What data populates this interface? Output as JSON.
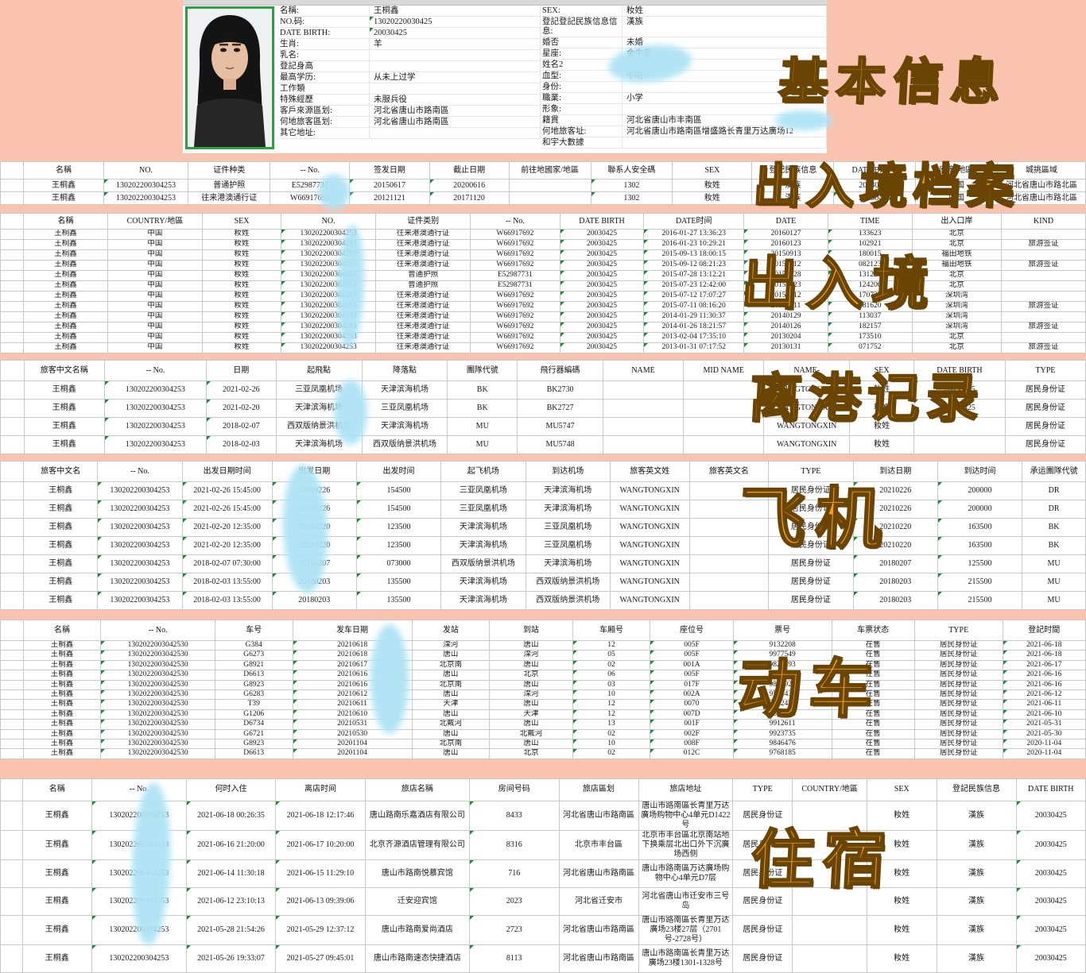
{
  "stamps": {
    "basic": "基本信息",
    "entry_exit_archive": "出入境档案",
    "entry_exit": "出入境",
    "departure": "离港记录",
    "flight": "飞机",
    "train": "动车",
    "lodging": "住宿"
  },
  "profile": {
    "left_fields": [
      {
        "label": "名稱:",
        "value": "王桐鑫"
      },
      {
        "label": "NO.码:",
        "value": "13020220030425"
      },
      {
        "label": "DATE BIRTH:",
        "value": "20030425"
      },
      {
        "label": "生肖:",
        "value": "羊"
      },
      {
        "label": "乳名:",
        "value": ""
      },
      {
        "label": "登記身高",
        "value": ""
      },
      {
        "label": "最高学历:",
        "value": "从未上过学"
      },
      {
        "label": "工作類",
        "value": ""
      },
      {
        "label": "特殊經歷",
        "value": "未服兵役"
      },
      {
        "label": "客戶來源區划:",
        "value": "河北省唐山市路南區"
      },
      {
        "label": "何地旅客區划:",
        "value": "河北省唐山市路南區"
      },
      {
        "label": "其它地址:",
        "value": ""
      }
    ],
    "right_fields": [
      {
        "label": "SEX:",
        "value": "籹姓"
      },
      {
        "label": "登記登記民族信息信息:",
        "value": "漢族"
      },
      {
        "label": "婚否",
        "value": "未婚"
      },
      {
        "label": "星座:",
        "value": "金牛座"
      },
      {
        "label": "姓名2",
        "value": ""
      },
      {
        "label": "血型:",
        "value": "不明"
      },
      {
        "label": "身份:",
        "value": ""
      },
      {
        "label": "職業:",
        "value": "小学"
      },
      {
        "label": "形象:",
        "value": ""
      },
      {
        "label": "籍貫",
        "value": "河北省唐山市丰南區"
      },
      {
        "label": "何地旅客址:",
        "value": "河北省唐山市路南區增盛路长青里万达廣场12"
      },
      {
        "label": "和宇大數據",
        "value": ""
      }
    ]
  },
  "tables": [
    {
      "name": "entry-exit-archive-table",
      "headers": [
        "名稱",
        "NO.",
        "证件种类",
        "-- No.",
        "签发日期",
        "截止日期",
        "前往地國家/地區",
        "聯系人安全碼",
        "SEX",
        "登記民族信息",
        "DATE BIRTH",
        "國家/地區",
        "城挑區域"
      ],
      "rows": [
        [
          "王桐鑫",
          "130202200304253",
          "普通护照",
          "E52987731",
          "20150617",
          "20200616",
          "",
          "1302",
          "籹姓",
          "漢族",
          "20030425",
          "中国",
          "河北省唐山市路北區"
        ],
        [
          "王桐鑫",
          "130202200304253",
          "往来港澳通行证",
          "W66917692",
          "20121121",
          "20171120",
          "",
          "1302",
          "籹姓",
          "漢族",
          "20030425",
          "中国",
          "河北省唐山市路北區"
        ]
      ]
    },
    {
      "name": "entry-exit-table",
      "headers": [
        "名稱",
        "COUNTRY/地區",
        "SEX",
        "NO.",
        "证件类别",
        "-- No.",
        "DATE BIRTH",
        "DATE时间",
        "DATE",
        "TIME",
        "出入口岸",
        "KIND"
      ],
      "rows": [
        [
          "王桐鑫",
          "中国",
          "籹姓",
          "130202200304253",
          "往来港澳通行证",
          "W66917692",
          "20030425",
          "2016-01-27 13:36:23",
          "20160127",
          "133623",
          "北京",
          ""
        ],
        [
          "王桐鑫",
          "中国",
          "籹姓",
          "130202200304253",
          "往来港澳通行证",
          "W66917692",
          "20030425",
          "2016-01-23 10:29:21",
          "20160123",
          "102921",
          "北京",
          "旅游签证"
        ],
        [
          "王桐鑫",
          "中国",
          "籹姓",
          "130202200304253",
          "往来港澳通行证",
          "W66917692",
          "20030425",
          "2015-09-13 18:00:15",
          "20150913",
          "180015",
          "福田地铁",
          ""
        ],
        [
          "王桐鑫",
          "中国",
          "籹姓",
          "130202200304253",
          "往来港澳通行证",
          "W66917692",
          "20030425",
          "2015-09-12 08:21:23",
          "20150912",
          "082123",
          "福田地铁",
          "旅游签证"
        ],
        [
          "王桐鑫",
          "中国",
          "籹姓",
          "130202200304253",
          "普通护照",
          "E52987731",
          "20030425",
          "2015-07-28 13:12:21",
          "20150728",
          "131221",
          "北京",
          ""
        ],
        [
          "王桐鑫",
          "中国",
          "籹姓",
          "130202200304253",
          "普通护照",
          "E52987731",
          "20030425",
          "2015-07-23 12:42:00",
          "20150723",
          "124200",
          "北京",
          ""
        ],
        [
          "王桐鑫",
          "中国",
          "籹姓",
          "130202200304253",
          "往来港澳通行证",
          "W66917692",
          "20030425",
          "2015-07-12 17:07:27",
          "20150712",
          "170727",
          "深圳湾",
          ""
        ],
        [
          "王桐鑫",
          "中国",
          "籹姓",
          "130202200304253",
          "往来港澳通行证",
          "W66917692",
          "20030425",
          "2015-07-11 08:16:20",
          "20150711",
          "081620",
          "深圳湾",
          "旅游签证"
        ],
        [
          "王桐鑫",
          "中国",
          "籹姓",
          "130202200304253",
          "往来港澳通行证",
          "W66917692",
          "20030425",
          "2014-01-29 11:30:37",
          "20140129",
          "113037",
          "深圳湾",
          ""
        ],
        [
          "王桐鑫",
          "中国",
          "籹姓",
          "130202200304253",
          "往来港澳通行证",
          "W66917692",
          "20030425",
          "2014-01-26 18:21:57",
          "20140126",
          "182157",
          "深圳湾",
          "旅游签证"
        ],
        [
          "王桐鑫",
          "中国",
          "籹姓",
          "130202200304253",
          "往来港澳通行证",
          "W66917692",
          "20030425",
          "2013-02-04 17:35:10",
          "20130204",
          "173510",
          "北京",
          ""
        ],
        [
          "王桐鑫",
          "中国",
          "籹姓",
          "130202200304253",
          "往来港澳通行证",
          "W66917692",
          "20030425",
          "2013-01-31 07:17:52",
          "20130131",
          "071752",
          "北京",
          "旅游签证"
        ]
      ]
    },
    {
      "name": "departure-records-table",
      "headers": [
        "旅客中文名稱",
        "-- No.",
        "日期",
        "起飛點",
        "降落點",
        "團隊代號",
        "飛行器編碼",
        "NAME",
        "MID NAME",
        "NAME-",
        "SEX",
        "DATE BIRTH",
        "TYPE"
      ],
      "rows": [
        [
          "王桐鑫",
          "130202200304253",
          "2021-02-26",
          "三亚凤凰机场",
          "天津滨海机场",
          "BK",
          "BK2730",
          "",
          "",
          "WANGTONGXIN",
          "籹姓",
          "20030425",
          "居民身份证"
        ],
        [
          "王桐鑫",
          "130202200304253",
          "2021-02-20",
          "天津滨海机场",
          "三亚凤凰机场",
          "BK",
          "BK2727",
          "",
          "",
          "WANGTONGXIN",
          "籹姓",
          "20030425",
          "居民身份证"
        ],
        [
          "王桐鑫",
          "130202200304253",
          "2018-02-07",
          "西双版纳景洪机场",
          "天津滨海机场",
          "MU",
          "MU5747",
          "",
          "",
          "WANGTONGXIN",
          "籹姓",
          "",
          "居民身份证"
        ],
        [
          "王桐鑫",
          "130202200304253",
          "2018-02-03",
          "天津滨海机场",
          "西双版纳景洪机场",
          "MU",
          "MU5748",
          "",
          "",
          "WANGTONGXIN",
          "籹姓",
          "",
          "居民身份证"
        ]
      ]
    },
    {
      "name": "flight-records-table",
      "headers": [
        "旅客中文名",
        "-- No.",
        "出发日期时间",
        "出发日期",
        "出发时间",
        "起飞机场",
        "到达机场",
        "旅客英文姓",
        "旅客英文名",
        "TYPE",
        "到达日期",
        "到达时间",
        "承运團隊代號"
      ],
      "rows": [
        [
          "王桐鑫",
          "130202200304253",
          "2021-02-26 15:45:00",
          "20210226",
          "154500",
          "三亚凤凰机场",
          "天津滨海机场",
          "WANGTONGXIN",
          "",
          "居民身份证",
          "20210226",
          "200000",
          "DR"
        ],
        [
          "王桐鑫",
          "130202200304253",
          "2021-02-26 15:45:00",
          "20210226",
          "154500",
          "三亚凤凰机场",
          "天津滨海机场",
          "WANGTONGXIN",
          "",
          "居民身份证",
          "20210226",
          "200000",
          "DR"
        ],
        [
          "王桐鑫",
          "130202200304253",
          "2021-02-20 12:35:00",
          "20210220",
          "123500",
          "天津滨海机场",
          "三亚凤凰机场",
          "WANGTONGXIN",
          "",
          "居民身份证",
          "20210220",
          "163500",
          "BK"
        ],
        [
          "王桐鑫",
          "130202200304253",
          "2021-02-20 12:35:00",
          "20210220",
          "123500",
          "天津滨海机场",
          "三亚凤凰机场",
          "WANGTONGXIN",
          "",
          "居民身份证",
          "20210220",
          "163500",
          "BK"
        ],
        [
          "王桐鑫",
          "130202200304253",
          "2018-02-07 07:30:00",
          "20180207",
          "073000",
          "西双版纳景洪机场",
          "天津滨海机场",
          "WANGTONGXIN",
          "",
          "居民身份证",
          "20180207",
          "125500",
          "MU"
        ],
        [
          "王桐鑫",
          "130202200304253",
          "2018-02-03 13:55:00",
          "20180203",
          "135500",
          "天津滨海机场",
          "西双版纳景洪机场",
          "WANGTONGXIN",
          "",
          "居民身份证",
          "20180203",
          "215500",
          "MU"
        ],
        [
          "王桐鑫",
          "130202200304253",
          "2018-02-03 13:55:00",
          "20180203",
          "135500",
          "天津滨海机场",
          "西双版纳景洪机场",
          "WANGTONGXIN",
          "",
          "居民身份证",
          "20180203",
          "215500",
          "MU"
        ]
      ]
    },
    {
      "name": "train-records-table",
      "headers": [
        "名稱",
        "-- No.",
        "车号",
        "发车日期",
        "发站",
        "到站",
        "车厢号",
        "座位号",
        "票号",
        "车票状态",
        "TYPE",
        "登記时間"
      ],
      "rows": [
        [
          "王桐鑫",
          "1302022003042530",
          "G384",
          "20210618",
          "滦河",
          "唐山",
          "12",
          "005F",
          "9132208",
          "在售",
          "居民身份证",
          "2021-06-18"
        ],
        [
          "王桐鑫",
          "1302022003042530",
          "G6273",
          "20210618",
          "唐山",
          "滦河",
          "05",
          "005F",
          "9977549",
          "在售",
          "居民身份证",
          "2021-06-18"
        ],
        [
          "王桐鑫",
          "1302022003042530",
          "G8921",
          "20210617",
          "北京南",
          "唐山",
          "02",
          "001A",
          "9826593",
          "在售",
          "居民身份证",
          "2021-06-17"
        ],
        [
          "王桐鑫",
          "1302022003042530",
          "D6613",
          "20210616",
          "唐山",
          "北京",
          "06",
          "005F",
          "9971648",
          "在售",
          "居民身份证",
          "2021-06-16"
        ],
        [
          "王桐鑫",
          "1302022003042530",
          "G8923",
          "20210616",
          "北京南",
          "唐山",
          "03",
          "017F",
          "9804923",
          "在售",
          "居民身份证",
          "2021-06-16"
        ],
        [
          "王桐鑫",
          "1302022003042530",
          "G6283",
          "20210612",
          "唐山",
          "滦河",
          "10",
          "002A",
          "9534438",
          "在售",
          "居民身份证",
          "2021-06-12"
        ],
        [
          "王桐鑫",
          "1302022003042530",
          "T39",
          "20210611",
          "天津",
          "唐山",
          "12",
          "0070",
          "9722432",
          "在售",
          "居民身份证",
          "2021-06-11"
        ],
        [
          "王桐鑫",
          "1302022003042530",
          "G1206",
          "20210610",
          "唐山",
          "天津",
          "12",
          "007D",
          "9535994",
          "在售",
          "居民身份证",
          "2021-06-10"
        ],
        [
          "王桐鑫",
          "1302022003042530",
          "D6734",
          "20210531",
          "北戴河",
          "唐山",
          "13",
          "001F",
          "9912611",
          "在售",
          "居民身份证",
          "2021-05-31"
        ],
        [
          "王桐鑫",
          "1302022003042530",
          "G6721",
          "20210530",
          "唐山",
          "北戴河",
          "02",
          "002F",
          "9923735",
          "在售",
          "居民身份证",
          "2021-05-30"
        ],
        [
          "王桐鑫",
          "1302022003042530",
          "G8923",
          "20201104",
          "北京南",
          "唐山",
          "10",
          "008F",
          "9846476",
          "在售",
          "居民身份证",
          "2020-11-04"
        ],
        [
          "王桐鑫",
          "1302022003042530",
          "D6613",
          "20201104",
          "唐山",
          "北京",
          "02",
          "012C",
          "9768185",
          "在售",
          "居民身份证",
          "2020-11-04"
        ]
      ]
    },
    {
      "name": "lodging-records-table",
      "headers": [
        "名稱",
        "-- No.",
        "何时入住",
        "离店时间",
        "旅店名稱",
        "房间号码",
        "旅店區划",
        "旅店地址",
        "TYPE",
        "COUNTRY/地區",
        "SEX",
        "登記民族信息",
        "DATE BIRTH"
      ],
      "rows": [
        [
          "王桐鑫",
          "130202200304253",
          "2021-06-18 00:26:35",
          "2021-06-18 12:17:46",
          "唐山路南乐嘉酒店有限公司",
          "8433",
          "河北省唐山市路南區",
          "唐山市路南區长青里万达廣场购物中心4单元D1422号",
          "居民身份证",
          "",
          "籹姓",
          "漢族",
          "20030425"
        ],
        [
          "王桐鑫",
          "130202200304253",
          "2021-06-16 21:20:00",
          "2021-06-17 10:20:00",
          "北京齐源酒店管理有限公司",
          "8316",
          "北京市丰台區",
          "北京市丰台區北京南站地下换乘层北出口外下沉廣场西侧",
          "居民身份证",
          "",
          "籹姓",
          "漢族",
          "20030425"
        ],
        [
          "王桐鑫",
          "130202200304253",
          "2021-06-14 11:30:18",
          "2021-06-15 11:29:10",
          "唐山市路南悦慕宾馆",
          "716",
          "河北省唐山市路南區",
          "唐山市路南區万达廣场购物中心4单元D7层",
          "居民身份证",
          "",
          "籹姓",
          "漢族",
          "20030425"
        ],
        [
          "王桐鑫",
          "130202200304253",
          "2021-06-12 23:10:13",
          "2021-06-13 09:39:06",
          "迁安迎宾馆",
          "2023",
          "河北省迁安市",
          "河北省唐山市迁安市三号岛",
          "居民身份证",
          "",
          "籹姓",
          "漢族",
          "20030425"
        ],
        [
          "王桐鑫",
          "130202200304253",
          "2021-05-28 21:54:26",
          "2021-05-29 12:37:12",
          "唐山市路南爱尚酒店",
          "2723",
          "河北省唐山市路南區",
          "唐山市路南區长青里万达廣场23楼27层（2701号-2728号）",
          "居民身份证",
          "",
          "籹姓",
          "漢族",
          "20030425"
        ],
        [
          "王桐鑫",
          "130202200304253",
          "2021-05-26 19:33:07",
          "2021-05-27 09:45:01",
          "唐山市路南速态快捷酒店",
          "8113",
          "河北省唐山市路南區",
          "唐山市路南區长青里万达廣场23楼1301-1328号",
          "居民身份证",
          "",
          "籹姓",
          "漢族",
          "20030425"
        ]
      ]
    }
  ]
}
